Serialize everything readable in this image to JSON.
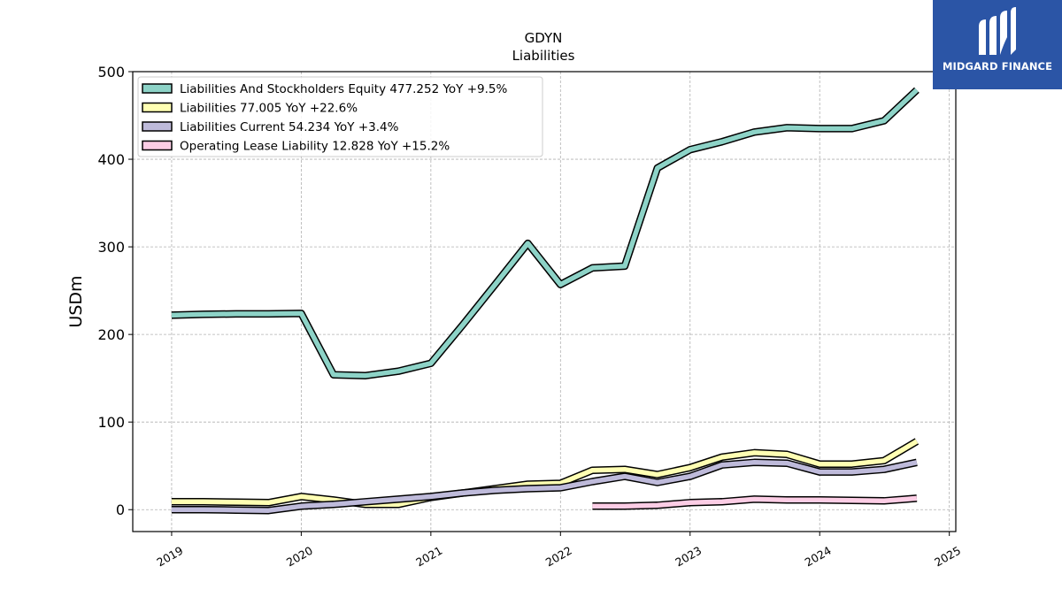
{
  "chart_data": {
    "type": "line",
    "title": "GDYN",
    "subtitle": "Liabilities",
    "ylabel": "USDm",
    "xlabel": "",
    "xlim": [
      2018.7,
      2025.05
    ],
    "ylim": [
      -25,
      500
    ],
    "yticks": [
      0,
      100,
      200,
      300,
      400,
      500
    ],
    "xticks": [
      "2019",
      "2020",
      "2021",
      "2022",
      "2023",
      "2024",
      "2025"
    ],
    "grid": true,
    "legend_position": "top-left",
    "series": [
      {
        "name": "Liabilities And Stockholders Equity  477.252 YoY +9.5%",
        "color": "#8dd3c7",
        "x": [
          "2019-01-01",
          "2019-04-01",
          "2019-07-01",
          "2019-10-01",
          "2020-01-01",
          "2020-04-01",
          "2020-07-01",
          "2020-10-01",
          "2021-01-01",
          "2021-04-01",
          "2021-07-01",
          "2021-10-01",
          "2022-01-01",
          "2022-04-01",
          "2022-07-01",
          "2022-10-01",
          "2023-01-01",
          "2023-04-01",
          "2023-07-01",
          "2023-10-01",
          "2024-01-01",
          "2024-04-01",
          "2024-07-01",
          "2024-10-01"
        ],
        "y": [
          222,
          223,
          223.5,
          223.5,
          224,
          154,
          153,
          158,
          167,
          211,
          257,
          304,
          257,
          276,
          278,
          390,
          411,
          420,
          431,
          436,
          435,
          435,
          444,
          479
        ]
      },
      {
        "name": "Liabilities  77.005 YoY +22.6%",
        "color": "#ffffb3",
        "x": [
          "2019-01-01",
          "2019-04-01",
          "2019-07-01",
          "2019-10-01",
          "2020-01-01",
          "2020-04-01",
          "2020-07-01",
          "2020-10-01",
          "2021-01-01",
          "2021-04-01",
          "2021-07-01",
          "2021-10-01",
          "2022-01-01",
          "2022-04-01",
          "2022-07-01",
          "2022-10-01",
          "2023-01-01",
          "2023-04-01",
          "2023-07-01",
          "2023-10-01",
          "2024-01-01",
          "2024-04-01",
          "2024-07-01",
          "2024-10-01"
        ],
        "y": [
          9,
          9,
          8.5,
          8,
          15,
          11,
          6,
          6,
          14,
          19,
          24,
          29,
          30,
          45,
          46,
          40,
          48,
          60,
          65,
          63,
          52,
          52,
          56,
          78
        ]
      },
      {
        "name": "Liabilities Current  54.234 YoY +3.4%",
        "color": "#bebada",
        "x": [
          "2019-01-01",
          "2019-04-01",
          "2019-07-01",
          "2019-10-01",
          "2020-01-01",
          "2020-04-01",
          "2020-07-01",
          "2020-10-01",
          "2021-01-01",
          "2021-04-01",
          "2021-07-01",
          "2021-10-01",
          "2022-01-01",
          "2022-04-01",
          "2022-07-01",
          "2022-10-01",
          "2023-01-01",
          "2023-04-01",
          "2023-07-01",
          "2023-10-01",
          "2024-01-01",
          "2024-04-01",
          "2024-07-01",
          "2024-10-01"
        ],
        "y": [
          0,
          0,
          -0.5,
          -1,
          4,
          6,
          9,
          12,
          15,
          19,
          22,
          24,
          25,
          32,
          38,
          31,
          38,
          51,
          54,
          53,
          43,
          43,
          46,
          54
        ]
      },
      {
        "name": "Operating Lease Liability  12.828 YoY +15.2%",
        "color": "#fccde5",
        "x": [
          "2022-04-01",
          "2022-07-01",
          "2022-10-01",
          "2023-01-01",
          "2023-04-01",
          "2023-07-01",
          "2023-10-01",
          "2024-01-01",
          "2024-04-01",
          "2024-07-01",
          "2024-10-01"
        ],
        "y": [
          4,
          4,
          5,
          8,
          9,
          12,
          11,
          11,
          10.5,
          10,
          13
        ]
      }
    ]
  },
  "logo": {
    "text": "MIDGARD FINANCE",
    "background": "#2b55a6"
  }
}
